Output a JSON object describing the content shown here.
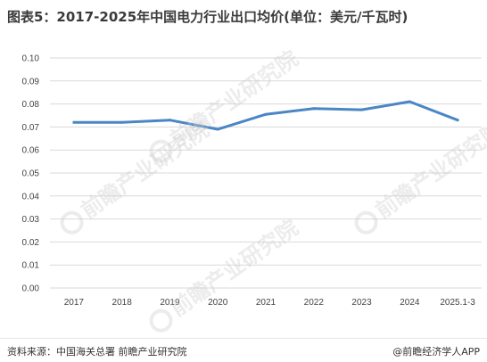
{
  "title": "图表5：2017-2025年中国电力行业出口均价(单位：美元/千瓦时)",
  "source": "资料来源：中国海关总署 前瞻产业研究院",
  "brand": "@前瞻经济学人APP",
  "watermark": "前瞻产业研究院",
  "colors": {
    "line": "#4a86c5",
    "grid": "#d9d9d9"
  },
  "chart_data": {
    "type": "line",
    "title": "图表5：2017-2025年中国电力行业出口均价(单位：美元/千瓦时)",
    "categories": [
      "2017",
      "2018",
      "2019",
      "2020",
      "2021",
      "2022",
      "2023",
      "2024",
      "2025.1-3"
    ],
    "series": [
      {
        "values": [
          0.072,
          0.072,
          0.073,
          0.069,
          0.0755,
          0.078,
          0.0775,
          0.081,
          0.073
        ]
      }
    ],
    "ylim": [
      0,
      0.1
    ],
    "yticks": [
      "0.00",
      "0.01",
      "0.02",
      "0.03",
      "0.04",
      "0.05",
      "0.06",
      "0.07",
      "0.08",
      "0.09",
      "0.10"
    ],
    "xlabel": "",
    "ylabel": "",
    "grid": true,
    "legend": "none"
  }
}
